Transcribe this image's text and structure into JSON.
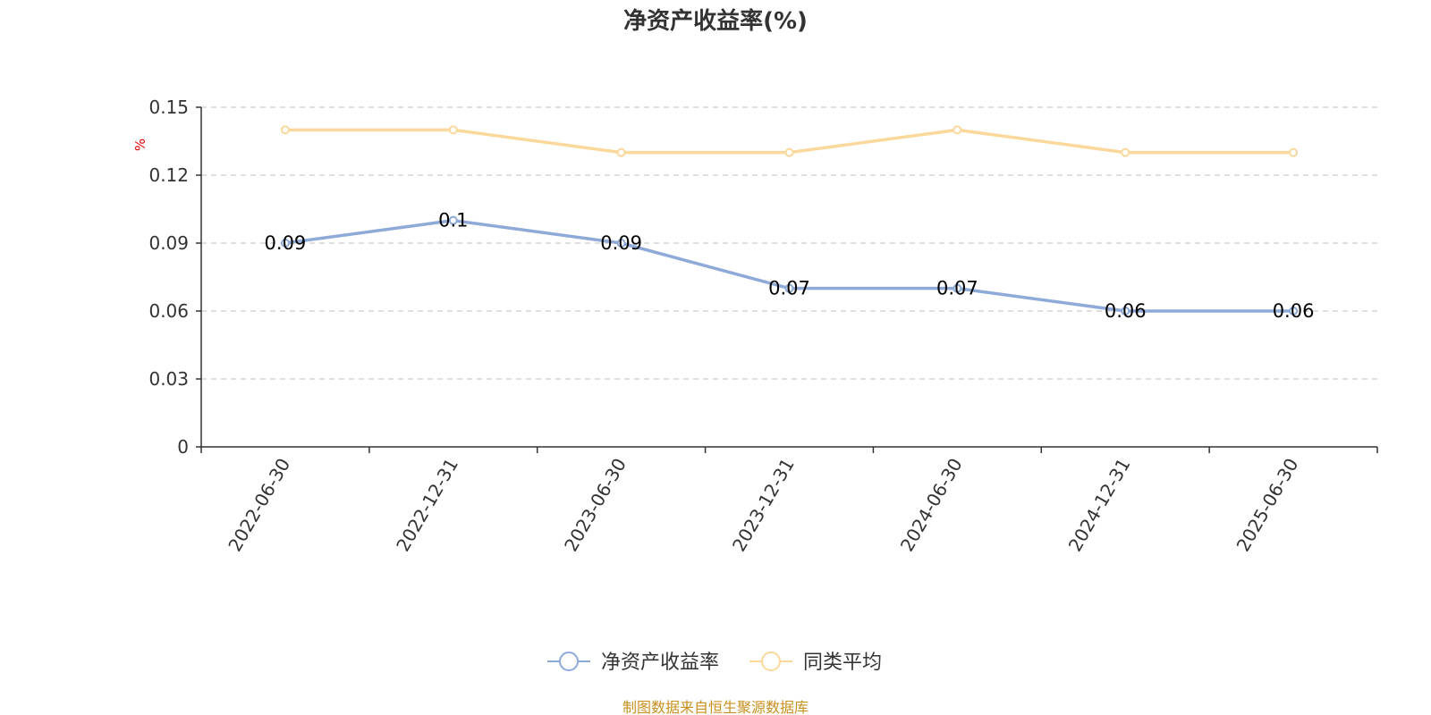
{
  "chart_data": {
    "type": "line",
    "title": "净资产收益率(%)",
    "ylabel": "%",
    "categories": [
      "2022-06-30",
      "2022-12-31",
      "2023-06-30",
      "2023-12-31",
      "2024-06-30",
      "2024-12-31",
      "2025-06-30"
    ],
    "series": [
      {
        "name": "净资产收益率",
        "values": [
          0.09,
          0.1,
          0.09,
          0.07,
          0.07,
          0.06,
          0.06
        ],
        "labels": [
          "0.09",
          "0.1",
          "0.09",
          "0.07",
          "0.07",
          "0.06",
          "0.06"
        ],
        "color": "#8eaad8"
      },
      {
        "name": "同类平均",
        "values": [
          0.14,
          0.14,
          0.13,
          0.13,
          0.14,
          0.13,
          0.13
        ],
        "color": "#fbd89b"
      }
    ],
    "yticks": [
      "0",
      "0.03",
      "0.06",
      "0.09",
      "0.12",
      "0.15"
    ],
    "ylim": [
      0,
      0.15
    ],
    "grid": true,
    "legend_position": "bottom-center"
  },
  "source_note": "制图数据来自恒生聚源数据库"
}
